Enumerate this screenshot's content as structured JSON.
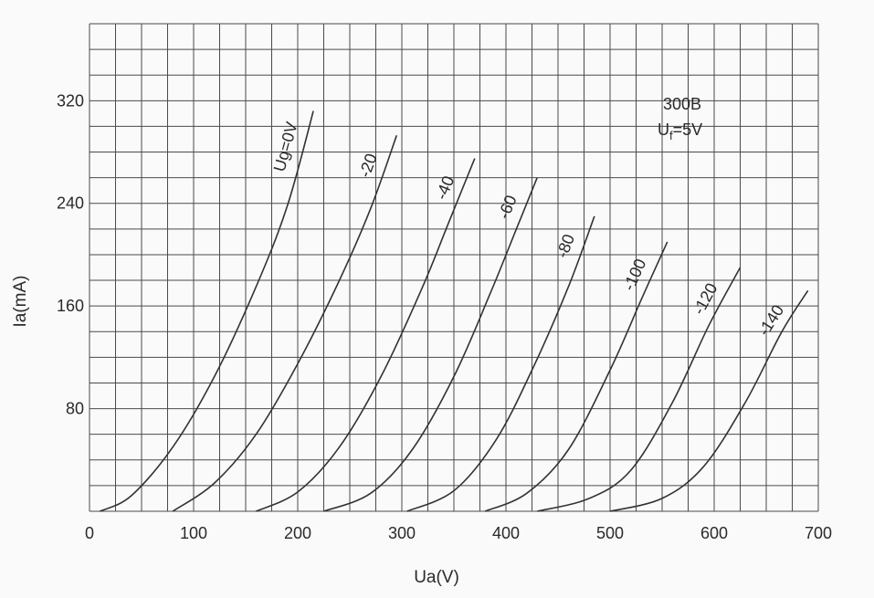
{
  "chart_data": {
    "type": "line",
    "title": "",
    "annotation": {
      "model": "300B",
      "filament_prefix": "U",
      "filament_sub": "f",
      "filament_value": "=5V"
    },
    "xlabel": "Ua(V)",
    "ylabel": "Ia(mA)",
    "xlim": [
      0,
      700
    ],
    "ylim": [
      0,
      380
    ],
    "x_ticks": [
      "0",
      "100",
      "200",
      "300",
      "400",
      "500",
      "600",
      "700"
    ],
    "y_ticks": [
      "80",
      "160",
      "240",
      "320"
    ],
    "grid": true,
    "series": [
      {
        "name": "Ug=0V",
        "points": [
          [
            10,
            0
          ],
          [
            40,
            12
          ],
          [
            80,
            50
          ],
          [
            120,
            105
          ],
          [
            160,
            175
          ],
          [
            190,
            238
          ],
          [
            215,
            312
          ]
        ]
      },
      {
        "name": "-20",
        "points": [
          [
            80,
            0
          ],
          [
            120,
            22
          ],
          [
            160,
            60
          ],
          [
            200,
            115
          ],
          [
            240,
            180
          ],
          [
            270,
            236
          ],
          [
            295,
            293
          ]
        ]
      },
      {
        "name": "-40",
        "points": [
          [
            160,
            0
          ],
          [
            200,
            15
          ],
          [
            240,
            50
          ],
          [
            280,
            105
          ],
          [
            320,
            175
          ],
          [
            345,
            225
          ],
          [
            370,
            275
          ]
        ]
      },
      {
        "name": "-60",
        "points": [
          [
            225,
            0
          ],
          [
            270,
            14
          ],
          [
            310,
            48
          ],
          [
            350,
            105
          ],
          [
            385,
            170
          ],
          [
            410,
            220
          ],
          [
            430,
            260
          ]
        ]
      },
      {
        "name": "-80",
        "points": [
          [
            305,
            0
          ],
          [
            350,
            16
          ],
          [
            390,
            55
          ],
          [
            425,
            110
          ],
          [
            460,
            175
          ],
          [
            485,
            230
          ]
        ]
      },
      {
        "name": "-100",
        "points": [
          [
            380,
            0
          ],
          [
            420,
            14
          ],
          [
            460,
            48
          ],
          [
            500,
            110
          ],
          [
            530,
            165
          ],
          [
            555,
            210
          ]
        ]
      },
      {
        "name": "-120",
        "points": [
          [
            430,
            0
          ],
          [
            480,
            10
          ],
          [
            520,
            32
          ],
          [
            560,
            85
          ],
          [
            595,
            145
          ],
          [
            625,
            190
          ]
        ]
      },
      {
        "name": "-140",
        "points": [
          [
            500,
            0
          ],
          [
            550,
            10
          ],
          [
            590,
            35
          ],
          [
            630,
            85
          ],
          [
            665,
            140
          ],
          [
            690,
            172
          ]
        ]
      }
    ]
  }
}
